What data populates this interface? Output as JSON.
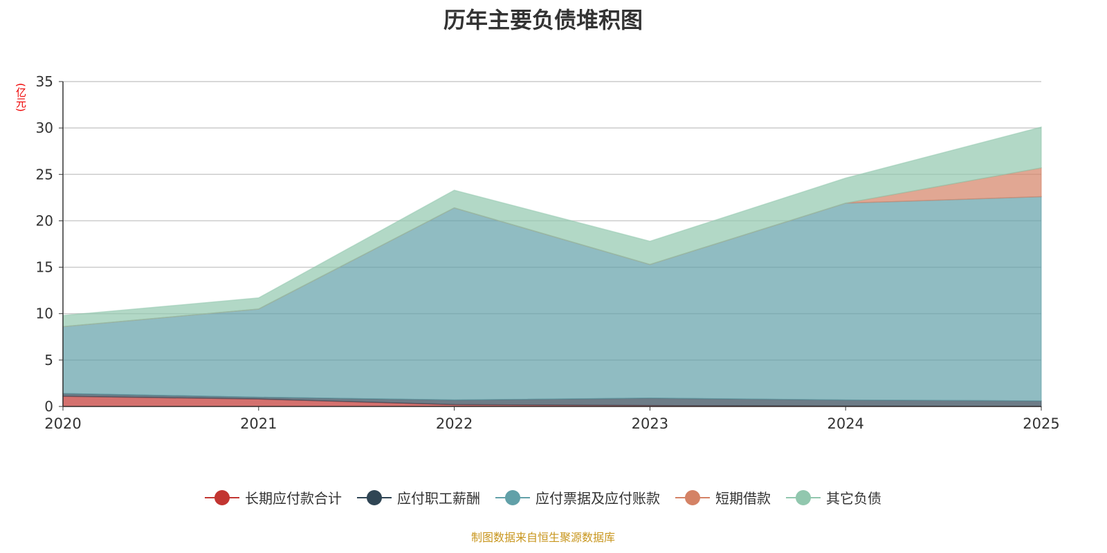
{
  "title": "历年主要负债堆积图",
  "unit": "(亿元)",
  "source": "制图数据来自恒生聚源数据库",
  "chart_data": {
    "type": "area",
    "stacked": true,
    "title": "历年主要负债堆积图",
    "ylabel": "(亿元)",
    "x": [
      "2020",
      "2021",
      "2022",
      "2023",
      "2024",
      "2025"
    ],
    "ylim": [
      0,
      35
    ],
    "yticks": [
      0,
      5,
      10,
      15,
      20,
      25,
      30,
      35
    ],
    "grid": true,
    "legend_position": "bottom",
    "series": [
      {
        "name": "长期应付款合计",
        "color": "#c23531",
        "values": [
          1.1,
          0.8,
          0.2,
          0.1,
          0.05,
          0.0
        ]
      },
      {
        "name": "应付职工薪酬",
        "color": "#2f4554",
        "values": [
          0.3,
          0.2,
          0.5,
          0.8,
          0.65,
          0.6
        ]
      },
      {
        "name": "应付票据及应付账款",
        "color": "#61a0a8",
        "values": [
          7.2,
          9.5,
          20.7,
          14.4,
          21.2,
          22.0
        ]
      },
      {
        "name": "短期借款",
        "color": "#d48265",
        "values": [
          0.0,
          0.0,
          0.0,
          0.0,
          0.0,
          3.1
        ]
      },
      {
        "name": "其它负债",
        "color": "#91c7ae",
        "values": [
          1.2,
          1.2,
          1.9,
          2.5,
          2.7,
          4.4
        ]
      }
    ]
  }
}
